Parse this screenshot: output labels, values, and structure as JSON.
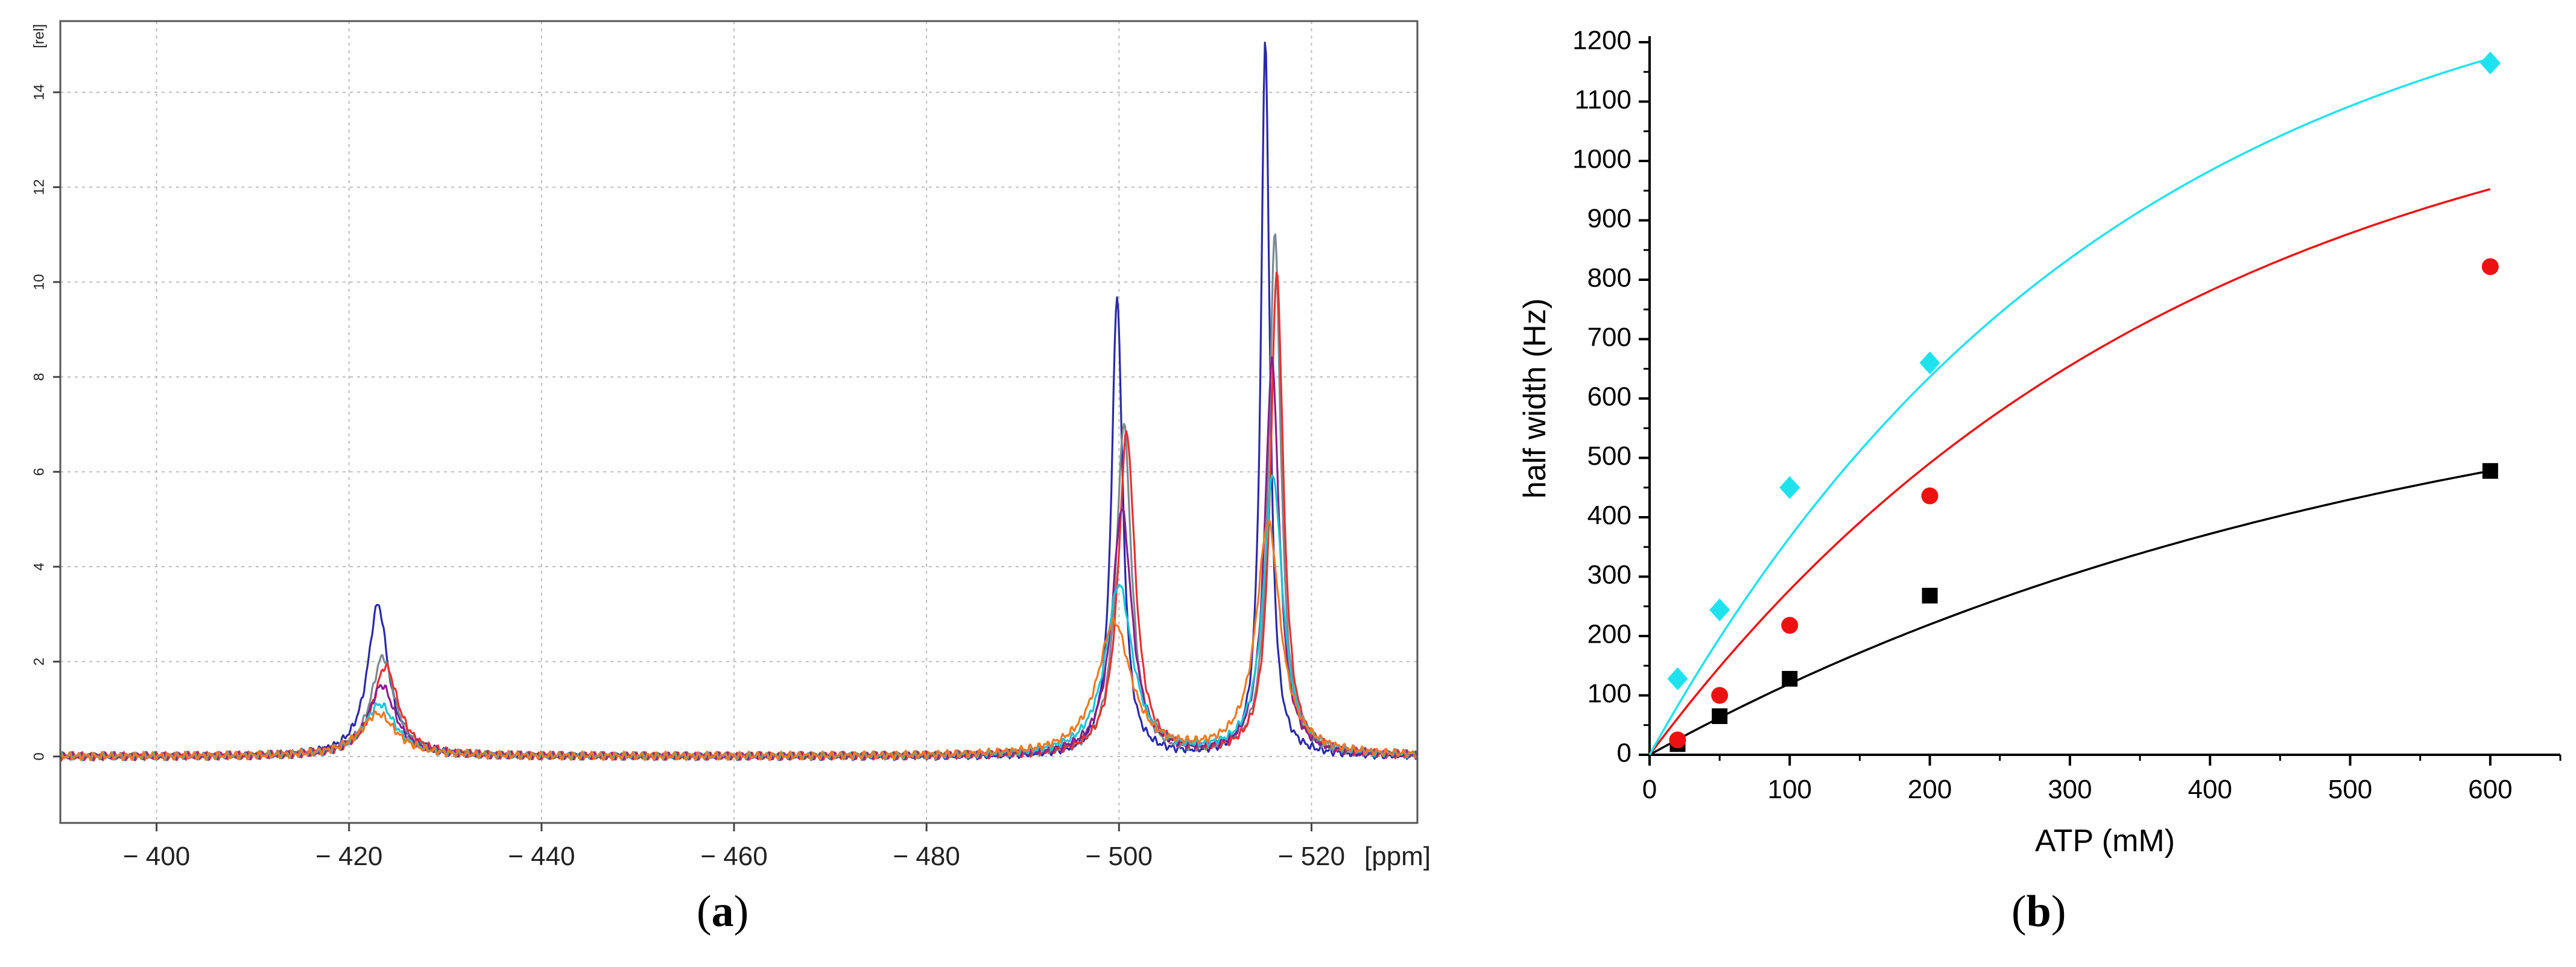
{
  "panels": {
    "a": {
      "caption_open": "(",
      "caption_letter": "a",
      "caption_close": ")"
    },
    "b": {
      "caption_open": "(",
      "caption_letter": "b",
      "caption_close": ")"
    }
  },
  "chart_data": [
    {
      "id": "a",
      "type": "line",
      "title": "",
      "xlabel": "[ppm]",
      "ylabel": "[rel]",
      "xlim": [
        -390,
        -531
      ],
      "ylim": [
        -1.4,
        15.5
      ],
      "x_ticks": [
        -400,
        -420,
        -440,
        -460,
        -480,
        -500,
        -520
      ],
      "x_tick_labels": [
        "− 400",
        "− 420",
        "− 440",
        "− 460",
        "− 480",
        "− 500",
        "− 520"
      ],
      "y_ticks": [
        0,
        2,
        4,
        6,
        8,
        10,
        12,
        14
      ],
      "y_tick_labels": [
        "0",
        "2",
        "4",
        "6",
        "8",
        "10",
        "12",
        "14"
      ],
      "grid": true,
      "series": [
        {
          "name": "spectrum-navy",
          "color": "#2a2aa8",
          "peaks": [
            {
              "pos": -423.0,
              "height": 3.2,
              "width": 2.6
            },
            {
              "pos": -499.8,
              "height": 9.7,
              "width": 1.4
            },
            {
              "pos": -515.2,
              "height": 15.1,
              "width": 1.1
            }
          ]
        },
        {
          "name": "spectrum-gray",
          "color": "#7a8a90",
          "peaks": [
            {
              "pos": -423.5,
              "height": 2.1,
              "width": 3.0
            },
            {
              "pos": -500.5,
              "height": 7.0,
              "width": 1.9
            },
            {
              "pos": -516.2,
              "height": 11.0,
              "width": 1.5
            }
          ]
        },
        {
          "name": "spectrum-red",
          "color": "#e83030",
          "peaks": [
            {
              "pos": -423.8,
              "height": 1.9,
              "width": 3.2
            },
            {
              "pos": -500.8,
              "height": 6.8,
              "width": 2.1
            },
            {
              "pos": -516.4,
              "height": 10.2,
              "width": 1.6
            }
          ]
        },
        {
          "name": "spectrum-purple",
          "color": "#8a1f8a",
          "peaks": [
            {
              "pos": -423.4,
              "height": 1.5,
              "width": 3.4
            },
            {
              "pos": -500.3,
              "height": 5.2,
              "width": 2.5
            },
            {
              "pos": -515.9,
              "height": 8.3,
              "width": 1.8
            }
          ]
        },
        {
          "name": "spectrum-cyan",
          "color": "#19c5d6",
          "peaks": [
            {
              "pos": -423.2,
              "height": 1.1,
              "width": 4.0
            },
            {
              "pos": -500.0,
              "height": 3.6,
              "width": 3.4
            },
            {
              "pos": -516.0,
              "height": 5.9,
              "width": 2.4
            }
          ]
        },
        {
          "name": "spectrum-orange",
          "color": "#f07820",
          "peaks": [
            {
              "pos": -423.0,
              "height": 0.9,
              "width": 4.5
            },
            {
              "pos": -499.5,
              "height": 2.8,
              "width": 4.2
            },
            {
              "pos": -515.5,
              "height": 4.9,
              "width": 3.0
            }
          ]
        }
      ]
    },
    {
      "id": "b",
      "type": "scatter",
      "title": "",
      "xlabel": "ATP (mM)",
      "ylabel": "half width (Hz)",
      "xlim": [
        0,
        650
      ],
      "ylim": [
        0,
        1200
      ],
      "x_ticks": [
        0,
        100,
        200,
        300,
        400,
        500,
        600
      ],
      "y_ticks": [
        0,
        100,
        200,
        300,
        400,
        500,
        600,
        700,
        800,
        900,
        1000,
        1100,
        1200
      ],
      "grid": false,
      "series": [
        {
          "name": "black-squares",
          "color": "#000000",
          "marker": "square",
          "x": [
            20,
            50,
            100,
            200,
            600
          ],
          "y": [
            18,
            65,
            128,
            268,
            478
          ],
          "fit": {
            "a": 720,
            "b": 550
          }
        },
        {
          "name": "red-circles",
          "color": "#ee1111",
          "marker": "circle",
          "x": [
            20,
            50,
            100,
            200,
            600
          ],
          "y": [
            25,
            100,
            218,
            436,
            822
          ],
          "fit": {
            "a": 1200,
            "b": 380
          }
        },
        {
          "name": "cyan-diamonds",
          "color": "#1ee3ee",
          "marker": "diamond",
          "x": [
            20,
            50,
            100,
            200,
            600
          ],
          "y": [
            128,
            244,
            450,
            660,
            1165
          ],
          "fit": {
            "a": 1400,
            "b": 330
          }
        }
      ]
    }
  ]
}
